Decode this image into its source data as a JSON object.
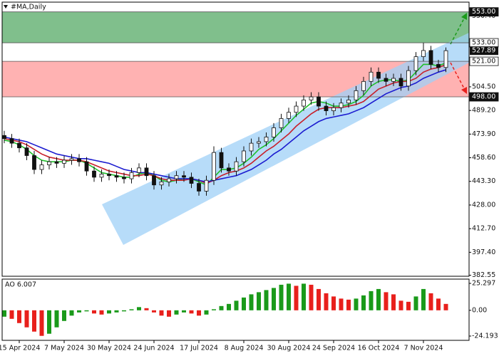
{
  "chart_data": [
    {
      "type": "candlestick",
      "title": "#MA,Daily",
      "categories": [
        null,
        null,
        "15 Apr 2024",
        null,
        null,
        null,
        null,
        null,
        "7 May 2024",
        null,
        null,
        null,
        null,
        null,
        "30 May 2024",
        null,
        null,
        null,
        null,
        null,
        "24 Jun 2024",
        null,
        null,
        null,
        null,
        null,
        "17 Jul 2024",
        null,
        null,
        null,
        null,
        null,
        "8 Aug 2024",
        null,
        null,
        null,
        null,
        null,
        "30 Aug 2024",
        null,
        null,
        null,
        null,
        null,
        "24 Sep 2024",
        null,
        null,
        null,
        null,
        null,
        "16 Oct 2024",
        null,
        null,
        null,
        null,
        null,
        "7 Nov 2024",
        null,
        null,
        null
      ],
      "open": [
        473,
        471,
        468,
        465,
        460,
        451,
        454,
        456,
        455,
        457,
        458,
        456,
        450,
        446,
        448,
        447,
        446,
        445,
        449,
        452,
        447,
        441,
        443,
        445,
        447,
        446,
        442,
        437,
        444,
        462,
        452,
        450,
        456,
        463,
        468,
        469,
        472,
        478,
        484,
        488,
        492,
        496,
        498,
        492,
        489,
        491,
        494,
        496,
        502,
        508,
        514,
        510,
        508,
        510,
        505,
        515,
        524,
        528,
        519,
        517
      ],
      "high": [
        476,
        474,
        471,
        468,
        463,
        457,
        459,
        459,
        460,
        461,
        461,
        459,
        453,
        451,
        451,
        450,
        449,
        452,
        455,
        455,
        450,
        446,
        448,
        450,
        450,
        449,
        445,
        447,
        466,
        465,
        455,
        459,
        466,
        471,
        472,
        475,
        481,
        487,
        491,
        495,
        499,
        501,
        501,
        495,
        494,
        497,
        499,
        505,
        511,
        517,
        517,
        513,
        513,
        513,
        518,
        527,
        533,
        531,
        522,
        530
      ],
      "low": [
        468,
        465,
        462,
        457,
        448,
        448,
        451,
        452,
        452,
        454,
        453,
        447,
        443,
        443,
        444,
        443,
        442,
        442,
        446,
        444,
        438,
        438,
        440,
        442,
        443,
        439,
        434,
        434,
        441,
        449,
        447,
        447,
        453,
        460,
        465,
        466,
        469,
        475,
        481,
        485,
        489,
        493,
        489,
        486,
        486,
        488,
        491,
        493,
        499,
        505,
        507,
        505,
        505,
        502,
        502,
        512,
        521,
        516,
        514,
        514
      ],
      "close": [
        471,
        468,
        465,
        460,
        451,
        454,
        456,
        455,
        457,
        458,
        456,
        450,
        446,
        448,
        447,
        446,
        445,
        449,
        452,
        447,
        441,
        443,
        445,
        447,
        446,
        442,
        437,
        444,
        462,
        452,
        450,
        456,
        463,
        468,
        469,
        472,
        478,
        484,
        488,
        492,
        496,
        498,
        492,
        489,
        491,
        494,
        496,
        502,
        508,
        514,
        510,
        508,
        510,
        505,
        515,
        524,
        528,
        519,
        517,
        527.89
      ],
      "up_color": "#ffffff",
      "down_color": "#111111",
      "lines": [
        {
          "color": "#1fbf2a",
          "values": [
            470,
            469,
            467,
            464,
            460,
            457,
            456,
            456,
            456,
            457,
            457,
            455,
            452,
            449,
            448,
            447,
            446,
            446,
            448,
            449,
            447,
            444,
            443,
            444,
            445,
            445,
            443,
            441,
            446,
            451,
            451,
            452,
            455,
            459,
            464,
            467,
            471,
            476,
            481,
            486,
            490,
            494,
            495,
            494,
            492,
            492,
            493,
            495,
            499,
            505,
            508,
            509,
            509,
            508,
            509,
            514,
            519,
            519,
            518,
            520
          ]
        },
        {
          "color": "#c8202a",
          "values": [
            471,
            470,
            469,
            467,
            464,
            461,
            459,
            458,
            457,
            457,
            457,
            456,
            454,
            452,
            450,
            449,
            448,
            447,
            447,
            448,
            447,
            445,
            444,
            444,
            444,
            445,
            444,
            442,
            444,
            447,
            449,
            450,
            452,
            455,
            459,
            463,
            466,
            470,
            474,
            479,
            483,
            487,
            490,
            491,
            491,
            491,
            492,
            493,
            495,
            499,
            503,
            505,
            507,
            508,
            508,
            510,
            514,
            516,
            517,
            518.8
          ]
        },
        {
          "color": "#1c1cd0",
          "values": [
            472,
            471,
            470,
            469,
            467,
            465,
            463,
            461,
            460,
            459,
            458,
            458,
            457,
            456,
            455,
            453,
            451,
            450,
            449,
            449,
            448,
            447,
            446,
            445,
            445,
            445,
            444,
            443,
            444,
            445,
            446,
            447,
            449,
            451,
            454,
            457,
            461,
            464,
            468,
            472,
            476,
            479,
            482,
            484,
            485,
            486,
            487,
            489,
            491,
            494,
            497,
            500,
            502,
            504,
            505,
            507,
            510,
            512,
            514,
            515.5
          ]
        }
      ],
      "ylim": [
        381.9,
        559.3
      ],
      "yticks": [
        {
          "value": 382.55,
          "label": "382.55"
        },
        {
          "value": 397.4,
          "label": "397.40"
        },
        {
          "value": 412.7,
          "label": "412.70"
        },
        {
          "value": 428,
          "label": "428.00"
        },
        {
          "value": 443.3,
          "label": "443.30"
        },
        {
          "value": 458.6,
          "label": "458.60"
        },
        {
          "value": 473.9,
          "label": "473.90"
        },
        {
          "value": 489.2,
          "label": "489.20"
        },
        {
          "value": 504.5,
          "label": "504.50"
        },
        {
          "value": 550.4,
          "label": "550.40"
        }
      ],
      "zones": [
        {
          "from": 533,
          "to": 553,
          "color": "#80bf8c"
        },
        {
          "from": 498,
          "to": 521,
          "color": "#ffb2b2"
        }
      ],
      "levels": [
        {
          "value": 553,
          "label": "553.00",
          "dark": true
        },
        {
          "value": 533,
          "label": "533.00",
          "dark": false
        },
        {
          "value": 521,
          "label": "521.00",
          "dark": false
        },
        {
          "value": 498,
          "label": "498.00",
          "dark": true
        }
      ],
      "last": {
        "value": 527.89,
        "label": "527.89"
      }
    },
    {
      "type": "bar",
      "title": "AO 6.007",
      "values": [
        -6,
        -8,
        -12,
        -16,
        -20,
        -24,
        -22,
        -16,
        -10,
        -5,
        -2,
        -1,
        -3,
        -4,
        -3,
        -2,
        -1,
        1,
        3,
        2,
        -2,
        -5,
        -6,
        -4,
        -2,
        -3,
        -5,
        -4,
        1,
        4,
        6,
        9,
        12,
        15,
        17,
        19,
        21,
        24,
        25,
        23,
        25,
        24,
        20,
        16,
        13,
        11,
        10,
        11,
        14,
        18,
        20,
        17,
        15,
        9,
        8,
        13,
        20,
        16,
        11,
        6.007
      ],
      "up_color": "#1a9a1a",
      "down_color": "#e8201c",
      "ylim": [
        -28.2,
        29.3
      ],
      "yticks": [
        25.297,
        {
          "value": 0,
          "label": "0.00"
        },
        -24.193
      ]
    }
  ]
}
